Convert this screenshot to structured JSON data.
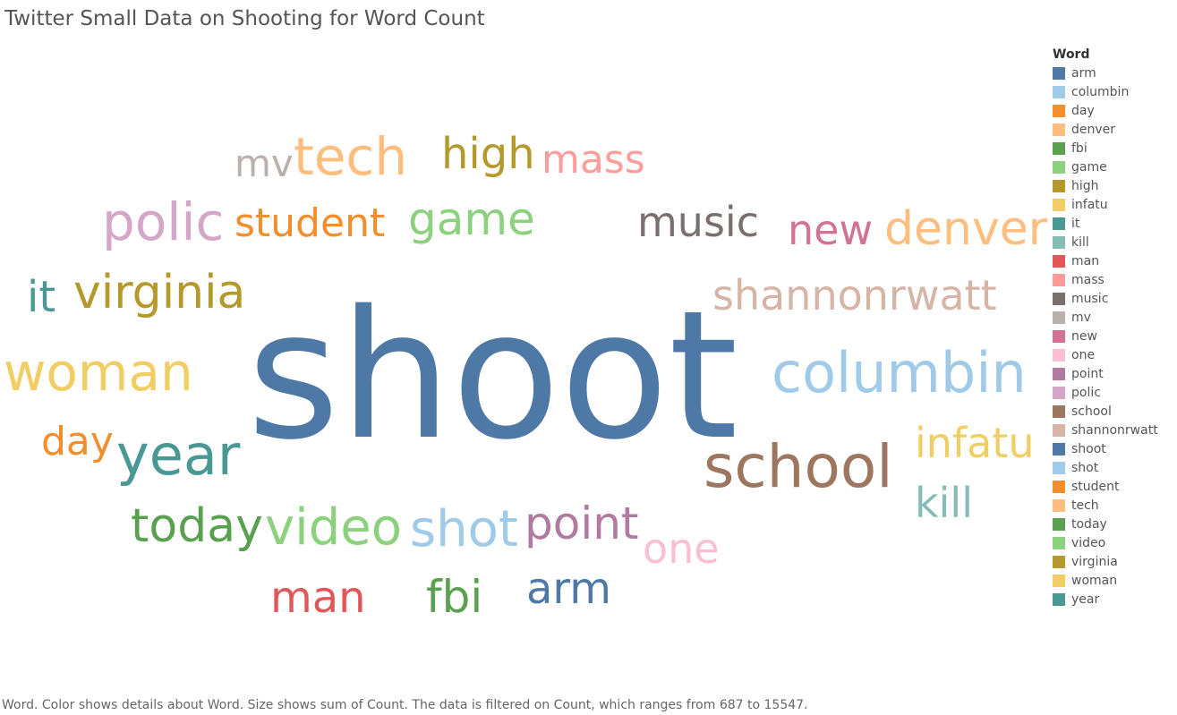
{
  "title": "Twitter Small Data on Shooting for Word Count",
  "caption": "Word.  Color shows details about Word.  Size shows sum of Count. The data is filtered on Count, which ranges from 687 to 15547.",
  "legend_title": "Word",
  "chart_data": {
    "type": "word-cloud",
    "title": "Twitter Small Data on Shooting for Word Count",
    "color_field": "Word",
    "size_field": "sum of Count",
    "count_range": [
      687,
      15547
    ],
    "words": [
      {
        "word": "arm",
        "color": "#4e79a7"
      },
      {
        "word": "columbin",
        "color": "#a0cbe8"
      },
      {
        "word": "day",
        "color": "#f28e2b"
      },
      {
        "word": "denver",
        "color": "#ffbe7d"
      },
      {
        "word": "fbi",
        "color": "#59a14f"
      },
      {
        "word": "game",
        "color": "#8cd17d"
      },
      {
        "word": "high",
        "color": "#b6992d"
      },
      {
        "word": "infatu",
        "color": "#f1ce63"
      },
      {
        "word": "it",
        "color": "#499894"
      },
      {
        "word": "kill",
        "color": "#86bcb6"
      },
      {
        "word": "man",
        "color": "#e15759"
      },
      {
        "word": "mass",
        "color": "#ff9d9a"
      },
      {
        "word": "music",
        "color": "#79706e"
      },
      {
        "word": "mv",
        "color": "#bab0ac"
      },
      {
        "word": "new",
        "color": "#d37295"
      },
      {
        "word": "one",
        "color": "#fabfd2"
      },
      {
        "word": "point",
        "color": "#b07aa1"
      },
      {
        "word": "polic",
        "color": "#d4a6c8"
      },
      {
        "word": "school",
        "color": "#9d7660"
      },
      {
        "word": "shannonrwatt",
        "color": "#d7b5a6"
      },
      {
        "word": "shoot",
        "color": "#4e79a7"
      },
      {
        "word": "shot",
        "color": "#a0cbe8"
      },
      {
        "word": "student",
        "color": "#f28e2b"
      },
      {
        "word": "tech",
        "color": "#ffbe7d"
      },
      {
        "word": "today",
        "color": "#59a14f"
      },
      {
        "word": "video",
        "color": "#8cd17d"
      },
      {
        "word": "virginia",
        "color": "#b6992d"
      },
      {
        "word": "woman",
        "color": "#f1ce63"
      },
      {
        "word": "year",
        "color": "#499894"
      }
    ]
  }
}
